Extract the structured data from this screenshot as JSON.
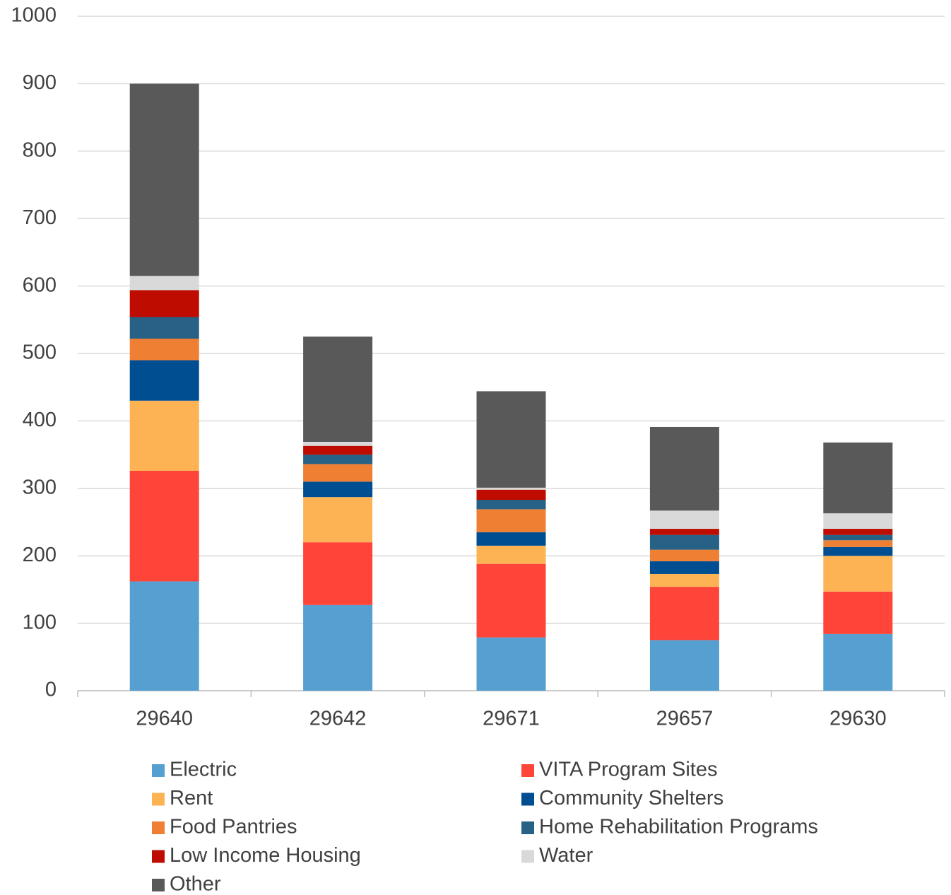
{
  "chart_data": {
    "type": "stacked_bar",
    "categories": [
      "29640",
      "29642",
      "29671",
      "29657",
      "29630"
    ],
    "series": [
      {
        "name": "Electric",
        "color": "#559fd1",
        "values": [
          162,
          127,
          79,
          75,
          84
        ]
      },
      {
        "name": "VITA Program Sites",
        "color": "#ff453a",
        "values": [
          164,
          93,
          109,
          79,
          63
        ]
      },
      {
        "name": "Rent",
        "color": "#fdb354",
        "values": [
          104,
          67,
          27,
          19,
          53
        ]
      },
      {
        "name": "Community Shelters",
        "color": "#004e92",
        "values": [
          60,
          23,
          20,
          19,
          13
        ]
      },
      {
        "name": "Food Pantries",
        "color": "#ef7f33",
        "values": [
          32,
          26,
          34,
          17,
          10
        ]
      },
      {
        "name": "Home Rehabilitation Programs",
        "color": "#276186",
        "values": [
          32,
          14,
          14,
          22,
          8
        ]
      },
      {
        "name": "Low Income Housing",
        "color": "#be0c00",
        "values": [
          40,
          13,
          15,
          9,
          9
        ]
      },
      {
        "name": "Water",
        "color": "#d9d9d9",
        "values": [
          21,
          6,
          3,
          27,
          23
        ]
      },
      {
        "name": "Other",
        "color": "#595959",
        "values": [
          285,
          156,
          143,
          124,
          105
        ]
      }
    ],
    "ylim": [
      0,
      1000
    ],
    "yticks": [
      0,
      100,
      200,
      300,
      400,
      500,
      600,
      700,
      800,
      900,
      1000
    ],
    "grid": true
  }
}
